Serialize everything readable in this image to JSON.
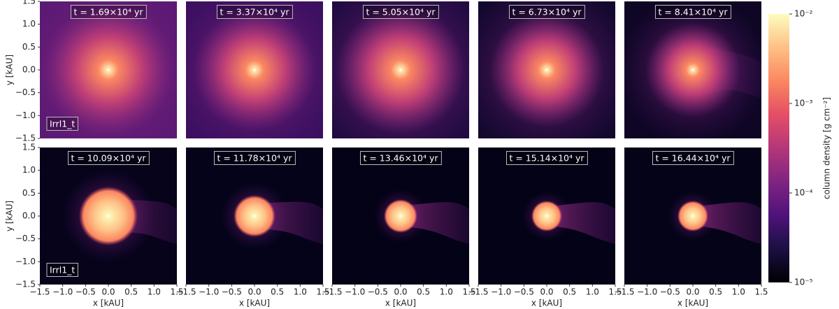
{
  "chart_data": {
    "type": "image-grid",
    "colormap": "magma",
    "xlabel": "x [kAU]",
    "ylabel": "y [kAU]",
    "xlim": [
      -1.5,
      1.5
    ],
    "ylim": [
      -1.5,
      1.5
    ],
    "xticks": [
      {
        "value": -1.5,
        "label": "−1.5"
      },
      {
        "value": -1,
        "label": "−1.0"
      },
      {
        "value": -0.5,
        "label": "−0.5"
      },
      {
        "value": 0,
        "label": "0.0"
      },
      0.5,
      {
        "value": 1,
        "label": "1.0"
      },
      1.5
    ],
    "yticks": [
      {
        "value": -1.5,
        "label": "−1.5"
      },
      {
        "value": -1,
        "label": "−1.0"
      },
      {
        "value": -0.5,
        "label": "−0.5"
      },
      {
        "value": 0,
        "label": "0.0"
      },
      0.5,
      {
        "value": 1,
        "label": "1.0"
      },
      1.5
    ],
    "panels": [
      {
        "title": "t = 1.69×10⁴ yr",
        "annotation": "Irrl1_t"
      },
      {
        "title": "t = 3.37×10⁴ yr"
      },
      {
        "title": "t = 5.05×10⁴ yr"
      },
      {
        "title": "t = 6.73×10⁴ yr"
      },
      {
        "title": "t = 8.41×10⁴ yr"
      },
      {
        "title": "t = 10.09×10⁴ yr",
        "annotation": "Irrl1_t"
      },
      {
        "title": "t = 11.78×10⁴ yr"
      },
      {
        "title": "t = 13.46×10⁴ yr"
      },
      {
        "title": "t = 15.14×10⁴ yr"
      },
      {
        "title": "t = 16.44×10⁴ yr"
      }
    ],
    "colorbar": {
      "label": "column density [g cm⁻²]",
      "log": true,
      "lim": [
        1e-05,
        0.01
      ],
      "ticks": [
        {
          "value": 1e-05,
          "label": "10⁻⁵"
        },
        {
          "value": 0.0001,
          "label": "10⁻⁴"
        },
        {
          "value": 0.001,
          "label": "10⁻³"
        },
        {
          "value": 0.01,
          "label": "10⁻²"
        }
      ]
    }
  }
}
